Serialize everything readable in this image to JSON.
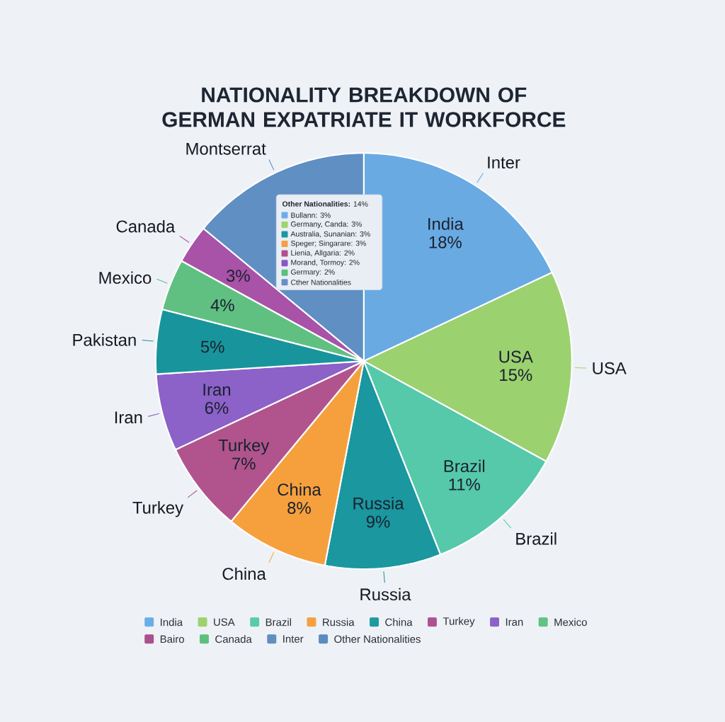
{
  "chart_data": [
    {
      "type": "pie",
      "title": "NATIONALITY BREAKDOWN OF GERMAN EXPATRIATE IT WORKFORCE",
      "categories": [
        "Inter",
        "USA",
        "Brazil",
        "Russia",
        "China",
        "Turkey",
        "Iran",
        "Pakistan",
        "Mexico",
        "Canada",
        "Montserrat"
      ],
      "values": [
        18,
        15,
        11,
        9,
        8,
        7,
        6,
        5,
        4,
        3,
        14
      ],
      "colors": [
        "#6aaae3",
        "#9bd16f",
        "#55c9aa",
        "#1a979f",
        "#f6a03d",
        "#b1548e",
        "#8c61c8",
        "#18959c",
        "#60c081",
        "#a852a8",
        "#5f8fc3"
      ],
      "value_labels": [
        "India 18%",
        "USA 15%",
        "Brazil 11%",
        "Russia 9%",
        "China 8%",
        "Turkey 7%",
        "Iran 6%",
        "5%",
        "4%",
        "3%",
        null
      ]
    },
    {
      "type": "other",
      "title": "**Other Nationalities:** 14%",
      "categories": [
        "Bullann: 3%",
        "Germany, Canda: 3%",
        "Australia, Sunanian: 3%",
        "Speger; Singarare: 3%",
        "Lienia, Allgaria: 2%",
        "Morand, Tormoy: 2%",
        "Germary: 2%",
        "Cther Nationalities"
      ],
      "colors": [
        "#6aaee8",
        "#9fd46a",
        "#1b979f",
        "#f5a044",
        "#b0508c",
        "#8a55c8",
        "#5bbf80",
        "#6490c8"
      ]
    },
    {
      "type": "other",
      "categories": [
        "India",
        "USA",
        "Brazil",
        "Russia",
        "China",
        "Turkey",
        "Iran",
        "Mexico",
        "Bairo",
        "Canada",
        "Inter",
        "Other Nationalities"
      ],
      "colors": [
        "#6aaee6",
        "#9dd36e",
        "#58cbaa",
        "#f5a040",
        "#1e9aa0",
        "#ad5290",
        "#8c62c8",
        "#62c284",
        "#a9508e",
        "#5dbf7c",
        "#5f8fc0",
        "#5a8cc0"
      ]
    }
  ]
}
